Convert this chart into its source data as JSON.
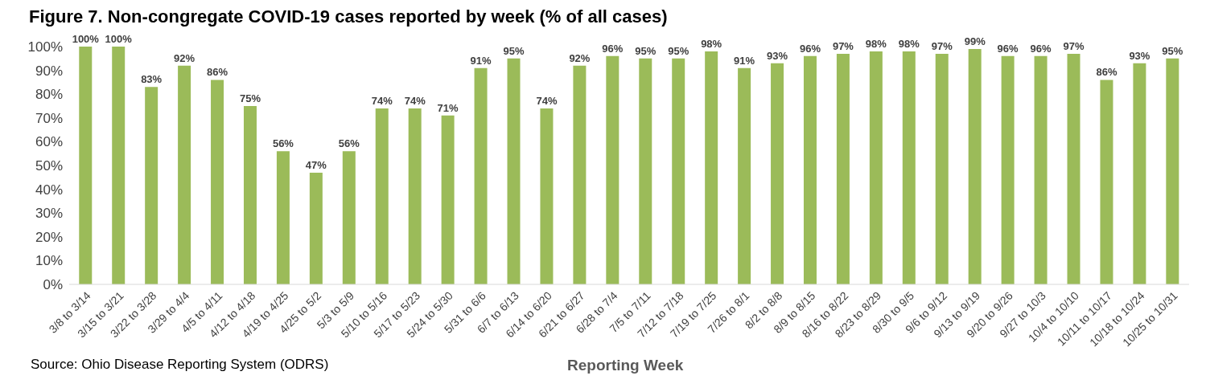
{
  "chart_data": {
    "type": "bar",
    "title": "Figure 7.  Non-congregate COVID-19 cases reported by week (% of all cases)",
    "xlabel": "Reporting Week",
    "annotations": [
      "Source:  Ohio Disease Reporting System (ODRS)"
    ],
    "categories": [
      "3/8 to 3/14",
      "3/15 to 3/21",
      "3/22 to 3/28",
      "3/29 to 4/4",
      "4/5 to 4/11",
      "4/12 to 4/18",
      "4/19 to 4/25",
      "4/25 to 5/2",
      "5/3 to 5/9",
      "5/10 to 5/16",
      "5/17 to 5/23",
      "5/24 to 5/30",
      "5/31 to 6/6",
      "6/7 to 6/13",
      "6/14 to 6/20",
      "6/21 to 6/27",
      "6/28 to 7/4",
      "7/5 to 7/11",
      "7/12 to 7/18",
      "7/19 to 7/25",
      "7/26 to 8/1",
      "8/2 to 8/8",
      "8/9 to 8/15",
      "8/16 to 8/22",
      "8/23 to 8/29",
      "8/30 to 9/5",
      "9/6 to 9/12",
      "9/13 to 9/19",
      "9/20 to 9/26",
      "9/27 to 10/3",
      "10/4 to 10/10",
      "10/11 to 10/17",
      "10/18 to 10/24",
      "10/25 to 10/31"
    ],
    "values": [
      100,
      100,
      83,
      92,
      86,
      75,
      56,
      47,
      56,
      74,
      74,
      71,
      91,
      95,
      74,
      92,
      96,
      95,
      95,
      98,
      91,
      93,
      96,
      97,
      98,
      98,
      97,
      99,
      96,
      96,
      97,
      86,
      93,
      95
    ],
    "value_labels": [
      "100%",
      "100%",
      "83%",
      "92%",
      "86%",
      "75%",
      "56%",
      "47%",
      "56%",
      "74%",
      "74%",
      "71%",
      "91%",
      "95%",
      "74%",
      "92%",
      "96%",
      "95%",
      "95%",
      "98%",
      "91%",
      "93%",
      "96%",
      "97%",
      "98%",
      "98%",
      "97%",
      "99%",
      "96%",
      "96%",
      "97%",
      "86%",
      "93%",
      "95%"
    ],
    "color": "#9bbb59",
    "ylim": [
      0,
      100
    ],
    "yticks": [
      {
        "value": 0,
        "label": "0%"
      },
      {
        "value": 10,
        "label": "10%"
      },
      {
        "value": 20,
        "label": "20%"
      },
      {
        "value": 30,
        "label": "30%"
      },
      {
        "value": 40,
        "label": "40%"
      },
      {
        "value": 50,
        "label": "50%"
      },
      {
        "value": 60,
        "label": "60%"
      },
      {
        "value": 70,
        "label": "70%"
      },
      {
        "value": 80,
        "label": "80%"
      },
      {
        "value": 90,
        "label": "90%"
      },
      {
        "value": 100,
        "label": "100%"
      }
    ],
    "grid": false,
    "legend": false
  }
}
